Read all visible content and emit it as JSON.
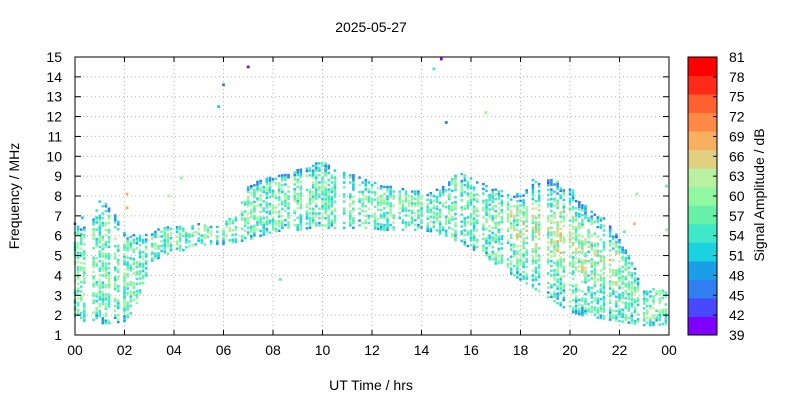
{
  "chart_data": {
    "type": "scatter",
    "title": "2025-05-27",
    "xlabel": "UT Time / hrs",
    "ylabel": "Frequency / MHz",
    "xlim": [
      0,
      24
    ],
    "ylim": [
      1,
      15
    ],
    "x_ticks": [
      "00",
      "02",
      "04",
      "06",
      "08",
      "10",
      "12",
      "14",
      "16",
      "18",
      "20",
      "22",
      "00"
    ],
    "y_ticks": [
      "1",
      "2",
      "3",
      "4",
      "5",
      "6",
      "7",
      "8",
      "9",
      "10",
      "11",
      "12",
      "13",
      "14",
      "15"
    ],
    "grid": true,
    "colorbar": {
      "label": "Signal Amplitude / dB",
      "ticks": [
        "39",
        "42",
        "45",
        "48",
        "51",
        "54",
        "57",
        "60",
        "63",
        "66",
        "69",
        "72",
        "75",
        "78",
        "81"
      ],
      "range": [
        39,
        81
      ],
      "colors": [
        "#8000ff",
        "#4848ff",
        "#2f7ff0",
        "#1a9ee6",
        "#1ad2e0",
        "#3fe8c8",
        "#66f0a8",
        "#90f8a0",
        "#b8f2a0",
        "#e0d080",
        "#f8b060",
        "#ff8a48",
        "#ff6030",
        "#ff2b18",
        "#ff0000"
      ]
    },
    "envelope": {
      "hours": [
        0,
        0.5,
        1,
        1.5,
        2,
        2.5,
        3,
        3.5,
        4,
        4.5,
        5,
        5.5,
        6,
        6.5,
        7,
        7.5,
        8,
        8.5,
        9,
        9.5,
        10,
        10.5,
        11,
        11.5,
        12,
        12.5,
        13,
        13.5,
        14,
        14.5,
        15,
        15.5,
        16,
        16.5,
        17,
        17.5,
        18,
        18.5,
        19,
        19.5,
        20,
        20.5,
        21,
        21.5,
        22,
        22.5,
        23,
        23.5,
        24
      ],
      "low_mhz": [
        1.8,
        1.7,
        1.6,
        1.6,
        1.7,
        2.5,
        4.5,
        5.0,
        5.2,
        5.3,
        5.5,
        5.6,
        5.6,
        5.7,
        5.8,
        6.0,
        6.2,
        6.3,
        6.3,
        6.4,
        6.4,
        6.4,
        6.4,
        6.4,
        6.4,
        6.3,
        6.3,
        6.3,
        6.3,
        6.2,
        6.0,
        5.7,
        5.4,
        5.0,
        4.6,
        4.2,
        3.8,
        3.4,
        3.0,
        2.6,
        2.2,
        2.0,
        1.9,
        1.8,
        1.7,
        1.6,
        1.5,
        1.5,
        1.6
      ],
      "high_mhz": [
        6.8,
        6.3,
        7.8,
        7.5,
        6.2,
        6.0,
        6.1,
        6.4,
        6.5,
        6.6,
        6.6,
        6.5,
        6.8,
        7.0,
        8.5,
        8.8,
        9.0,
        9.1,
        9.3,
        9.5,
        9.8,
        9.3,
        9.2,
        9.0,
        8.8,
        8.6,
        8.4,
        8.3,
        8.2,
        8.3,
        8.6,
        9.4,
        9.0,
        8.6,
        8.4,
        8.3,
        8.1,
        8.8,
        8.8,
        8.8,
        8.5,
        7.6,
        7.2,
        6.8,
        5.8,
        4.8,
        3.2,
        3.4,
        3.3
      ]
    },
    "outliers": [
      {
        "hour": 7.0,
        "mhz": 14.5,
        "db": 39
      },
      {
        "hour": 6.0,
        "mhz": 13.6,
        "db": 45
      },
      {
        "hour": 5.8,
        "mhz": 12.5,
        "db": 51
      },
      {
        "hour": 14.8,
        "mhz": 14.9,
        "db": 39
      },
      {
        "hour": 14.5,
        "mhz": 14.4,
        "db": 54
      },
      {
        "hour": 15.0,
        "mhz": 11.7,
        "db": 45
      },
      {
        "hour": 16.6,
        "mhz": 12.2,
        "db": 60
      },
      {
        "hour": 8.3,
        "mhz": 3.8,
        "db": 57
      },
      {
        "hour": 4.3,
        "mhz": 8.9,
        "db": 60
      },
      {
        "hour": 3.8,
        "mhz": 8.0,
        "db": 63
      },
      {
        "hour": 2.1,
        "mhz": 8.1,
        "db": 69
      },
      {
        "hour": 2.1,
        "mhz": 7.4,
        "db": 69
      },
      {
        "hour": 22.7,
        "mhz": 8.1,
        "db": 60
      },
      {
        "hour": 23.9,
        "mhz": 8.5,
        "db": 57
      },
      {
        "hour": 23.9,
        "mhz": 6.3,
        "db": 60
      },
      {
        "hour": 22.2,
        "mhz": 6.2,
        "db": 57
      },
      {
        "hour": 22.6,
        "mhz": 6.6,
        "db": 69
      },
      {
        "hour": 0.3,
        "mhz": 6.9,
        "db": 51
      }
    ]
  }
}
